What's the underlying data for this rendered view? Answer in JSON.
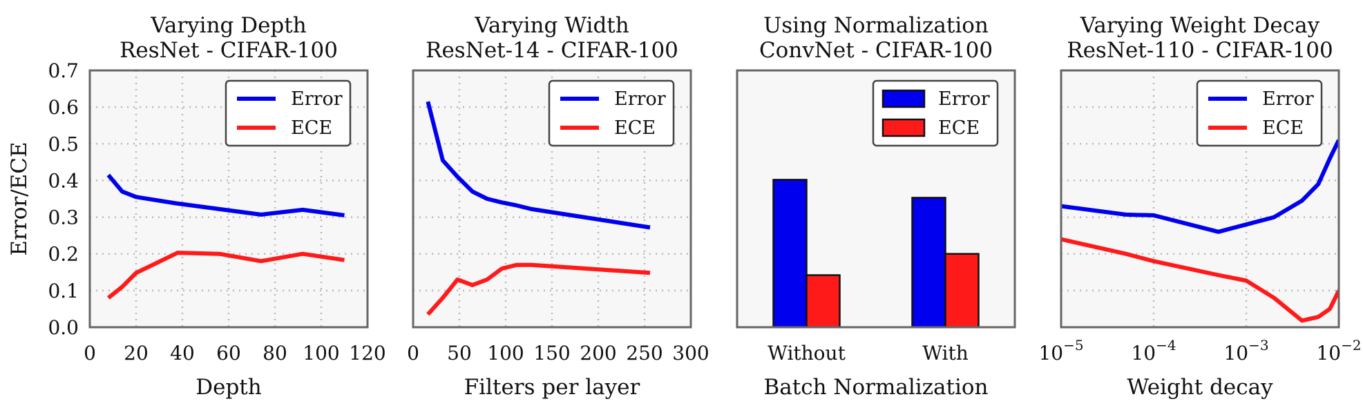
{
  "colors": {
    "error": "#0000ee",
    "ece": "#ff1a1a",
    "panel_bg": "#f7f7f7",
    "frame": "#666666",
    "grid": "#b8b8b8"
  },
  "chart_data": [
    {
      "type": "line",
      "title": [
        "Varying Depth",
        "ResNet - CIFAR-100"
      ],
      "xlabel": "Depth",
      "ylabel": "Error/ECE",
      "xlim": [
        0,
        120
      ],
      "ylim": [
        0,
        0.7
      ],
      "xticks": [
        0,
        20,
        40,
        60,
        80,
        100,
        120
      ],
      "xtick_labels": [
        "0",
        "20",
        "40",
        "60",
        "80",
        "100",
        "120"
      ],
      "yticks": [
        0,
        0.1,
        0.2,
        0.3,
        0.4,
        0.5,
        0.6,
        0.7
      ],
      "ytick_labels": [
        "0.0",
        "0.1",
        "0.2",
        "0.3",
        "0.4",
        "0.5",
        "0.6",
        "0.7"
      ],
      "grid": true,
      "legend": "top-right",
      "series": [
        {
          "name": "Error",
          "color": "#0000ee",
          "x": [
            8,
            14,
            20,
            38,
            56,
            74,
            92,
            110
          ],
          "y": [
            0.415,
            0.37,
            0.355,
            0.337,
            0.322,
            0.307,
            0.32,
            0.305
          ]
        },
        {
          "name": "ECE",
          "color": "#ff1a1a",
          "x": [
            8,
            14,
            20,
            38,
            56,
            74,
            92,
            110
          ],
          "y": [
            0.08,
            0.11,
            0.148,
            0.203,
            0.2,
            0.18,
            0.2,
            0.183
          ]
        }
      ]
    },
    {
      "type": "line",
      "title": [
        "Varying Width",
        "ResNet-14 - CIFAR-100"
      ],
      "xlabel": "Filters per layer",
      "ylabel": "",
      "xlim": [
        0,
        300
      ],
      "ylim": [
        0,
        0.7
      ],
      "xticks": [
        0,
        50,
        100,
        150,
        200,
        250,
        300
      ],
      "xtick_labels": [
        "0",
        "50",
        "100",
        "150",
        "200",
        "250",
        "300"
      ],
      "yticks": [
        0,
        0.1,
        0.2,
        0.3,
        0.4,
        0.5,
        0.6,
        0.7
      ],
      "grid": true,
      "legend": "top-right",
      "series": [
        {
          "name": "Error",
          "color": "#0000ee",
          "x": [
            16,
            32,
            48,
            64,
            80,
            96,
            112,
            128,
            256
          ],
          "y": [
            0.615,
            0.455,
            0.41,
            0.37,
            0.35,
            0.34,
            0.332,
            0.322,
            0.272
          ]
        },
        {
          "name": "ECE",
          "color": "#ff1a1a",
          "x": [
            16,
            32,
            48,
            64,
            80,
            96,
            112,
            128,
            256
          ],
          "y": [
            0.035,
            0.08,
            0.13,
            0.115,
            0.13,
            0.16,
            0.17,
            0.17,
            0.148
          ]
        }
      ]
    },
    {
      "type": "bar",
      "title": [
        "Using Normalization",
        "ConvNet - CIFAR-100"
      ],
      "xlabel": "Batch Normalization",
      "ylabel": "",
      "categories": [
        "Without",
        "With"
      ],
      "ylim": [
        0,
        0.7
      ],
      "yticks": [
        0,
        0.1,
        0.2,
        0.3,
        0.4,
        0.5,
        0.6,
        0.7
      ],
      "grid": false,
      "legend": "top-right",
      "series": [
        {
          "name": "Error",
          "color": "#0000ee",
          "values": [
            0.402,
            0.353
          ]
        },
        {
          "name": "ECE",
          "color": "#ff1a1a",
          "values": [
            0.142,
            0.2
          ]
        }
      ]
    },
    {
      "type": "line",
      "title": [
        "Varying Weight Decay",
        "ResNet-110 - CIFAR-100"
      ],
      "xlabel": "Weight decay",
      "ylabel": "",
      "xscale": "log",
      "xlim": [
        1e-05,
        0.01
      ],
      "ylim": [
        0,
        0.7
      ],
      "xticks": [
        1e-05,
        0.0001,
        0.001,
        0.01
      ],
      "xtick_labels": [
        [
          "10",
          "−5"
        ],
        [
          "10",
          "−4"
        ],
        [
          "10",
          "−3"
        ],
        [
          "10",
          "−2"
        ]
      ],
      "yticks": [
        0,
        0.1,
        0.2,
        0.3,
        0.4,
        0.5,
        0.6,
        0.7
      ],
      "grid": true,
      "legend": "top-right",
      "series": [
        {
          "name": "Error",
          "color": "#0000ee",
          "x": [
            1e-05,
            5e-05,
            0.0001,
            0.0005,
            0.001,
            0.002,
            0.004,
            0.006,
            0.008,
            0.01
          ],
          "y": [
            0.33,
            0.307,
            0.305,
            0.26,
            0.28,
            0.3,
            0.345,
            0.39,
            0.46,
            0.51
          ]
        },
        {
          "name": "ECE",
          "color": "#ff1a1a",
          "x": [
            1e-05,
            5e-05,
            0.0001,
            0.0005,
            0.001,
            0.002,
            0.004,
            0.006,
            0.008,
            0.01
          ],
          "y": [
            0.24,
            0.2,
            0.18,
            0.142,
            0.127,
            0.08,
            0.018,
            0.028,
            0.05,
            0.1
          ]
        }
      ]
    }
  ]
}
